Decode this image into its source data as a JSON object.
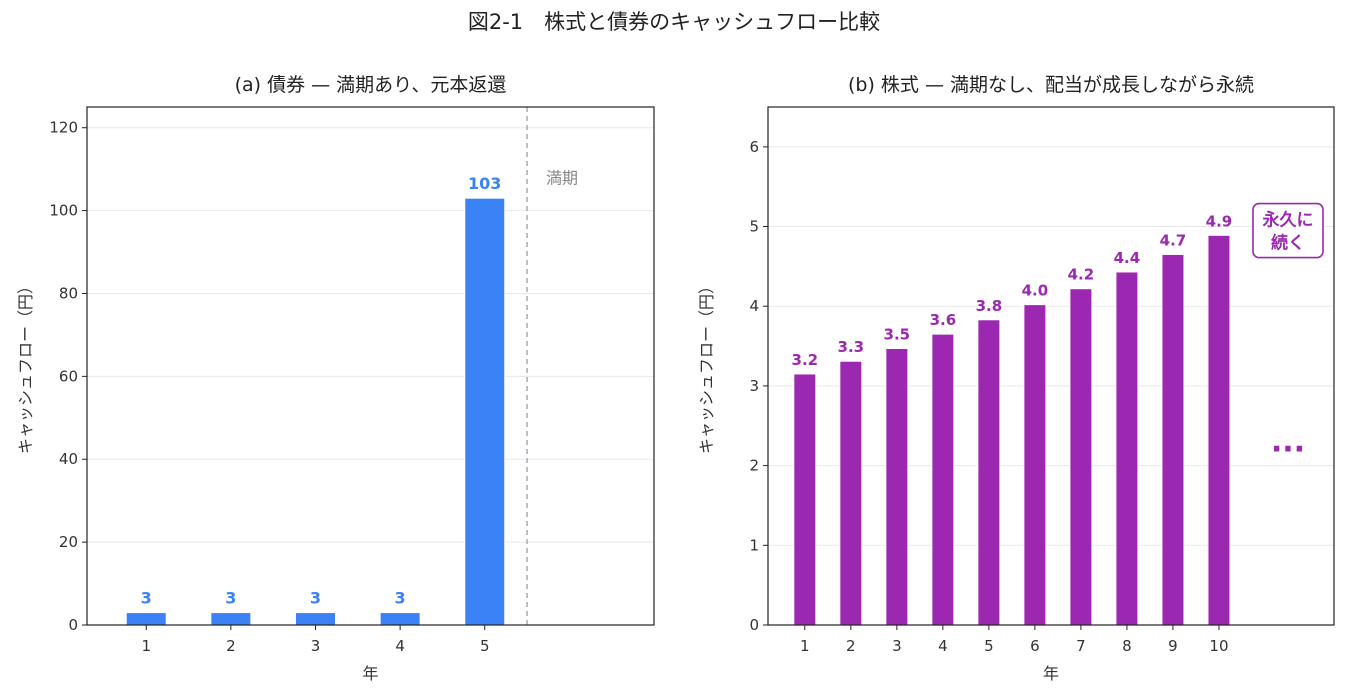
{
  "figure_title": "図2-1　株式と債券のキャッシュフロー比較",
  "colors": {
    "bond": "#3b82f6",
    "stock": "#9c27b0",
    "maturity_line": "#9ca3af",
    "grid": "#e8e8e8"
  },
  "chart_data": [
    {
      "type": "bar",
      "title": "(a) 債券 — 満期あり、元本返還",
      "xlabel": "年",
      "ylabel": "キャッシュフロー（円）",
      "categories": [
        "1",
        "2",
        "3",
        "4",
        "5"
      ],
      "values": [
        3,
        3,
        3,
        3,
        103
      ],
      "data_labels": [
        "3",
        "3",
        "3",
        "3",
        "103"
      ],
      "xlim": [
        0.3,
        7.0
      ],
      "ylim": [
        0,
        125
      ],
      "yticks": [
        0,
        20,
        40,
        60,
        80,
        100,
        120
      ],
      "grid": "horizontal",
      "annotations": [
        {
          "type": "vline",
          "x": 5.5,
          "style": "dashed",
          "label": "満期"
        }
      ]
    },
    {
      "type": "bar",
      "title": "(b) 株式 — 満期なし、配当が成長しながら永続",
      "xlabel": "年",
      "ylabel": "キャッシュフロー（円）",
      "categories": [
        "1",
        "2",
        "3",
        "4",
        "5",
        "6",
        "7",
        "8",
        "9",
        "10"
      ],
      "values": [
        3.15,
        3.31,
        3.47,
        3.65,
        3.83,
        4.02,
        4.22,
        4.43,
        4.65,
        4.89
      ],
      "data_labels": [
        "3.2",
        "3.3",
        "3.5",
        "3.6",
        "3.8",
        "4.0",
        "4.2",
        "4.4",
        "4.7",
        "4.9"
      ],
      "xlim": [
        0.2,
        12.5
      ],
      "ylim": [
        0,
        6.5
      ],
      "yticks": [
        0,
        1,
        2,
        3,
        4,
        5,
        6
      ],
      "grid": "horizontal",
      "annotations": [
        {
          "type": "box",
          "x": 11.5,
          "y": 4.95,
          "lines": [
            "永久に",
            "続く"
          ]
        },
        {
          "type": "text",
          "x": 11.5,
          "y": 2.3,
          "text": "..."
        }
      ]
    }
  ]
}
